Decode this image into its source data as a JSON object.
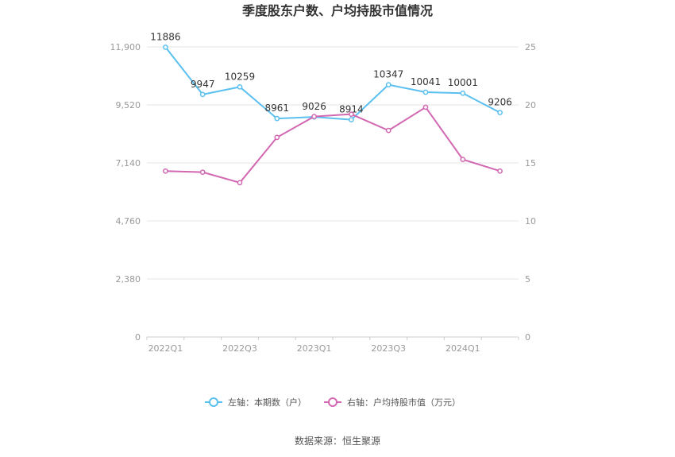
{
  "chart_data": {
    "type": "line",
    "title": "季度股东户数、户均持股市值情况",
    "categories": [
      "2022Q1",
      "2022Q2",
      "2022Q3",
      "2022Q4",
      "2023Q1",
      "2023Q2",
      "2023Q3",
      "2023Q4",
      "2024Q1",
      "2024Q2"
    ],
    "x_tick_labels": [
      "2022Q1",
      "2022Q3",
      "2023Q1",
      "2023Q3",
      "2024Q1"
    ],
    "left_axis": {
      "ticks": [
        "0",
        "2,380",
        "4,760",
        "7,140",
        "9,520",
        "11,900"
      ],
      "min": 0,
      "max": 11900
    },
    "right_axis": {
      "ticks": [
        "0",
        "5",
        "10",
        "15",
        "20",
        "25"
      ],
      "min": 0,
      "max": 25
    },
    "series": [
      {
        "name": "左轴：本期数（户）",
        "axis": "left",
        "color": "#5bc0f0",
        "values": [
          11886,
          9947,
          10259,
          8961,
          9026,
          8914,
          10347,
          10041,
          10001,
          9206
        ],
        "labels": [
          "11886",
          "9947",
          "10259",
          "8961",
          "9026",
          "8914",
          "10347",
          "10041",
          "10001",
          "9206"
        ]
      },
      {
        "name": "右轴：户均持股市值（万元）",
        "axis": "right",
        "color": "#d268b2",
        "values": [
          14.3,
          14.2,
          13.3,
          17.2,
          19.0,
          19.2,
          17.8,
          19.8,
          15.3,
          14.3
        ]
      }
    ],
    "grid": true,
    "legend_position": "bottom-center"
  },
  "source": "数据来源：恒生聚源"
}
